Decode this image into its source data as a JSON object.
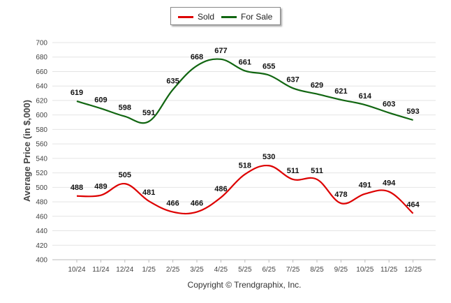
{
  "chart_data": {
    "type": "line",
    "title": "",
    "xlabel": "",
    "ylabel": "Average Price (in $,000)",
    "ylim": [
      400,
      700
    ],
    "yticks": [
      400,
      420,
      440,
      460,
      480,
      500,
      520,
      540,
      560,
      580,
      600,
      620,
      640,
      660,
      680,
      700
    ],
    "categories": [
      "10/24",
      "11/24",
      "12/24",
      "1/25",
      "2/25",
      "3/25",
      "4/25",
      "5/25",
      "6/25",
      "7/25",
      "8/25",
      "9/25",
      "10/25",
      "11/25",
      "12/25"
    ],
    "series": [
      {
        "name": "Sold",
        "color": "#dd0000",
        "values": [
          488,
          489,
          505,
          481,
          466,
          466,
          486,
          518,
          530,
          511,
          511,
          478,
          491,
          494,
          464
        ]
      },
      {
        "name": "For Sale",
        "color": "#116611",
        "values": [
          619,
          609,
          598,
          591,
          635,
          668,
          677,
          661,
          655,
          637,
          629,
          621,
          614,
          603,
          593
        ]
      }
    ],
    "legend_position": "top-center",
    "grid": true,
    "footer": "Copyright © Trendgraphix, Inc."
  }
}
